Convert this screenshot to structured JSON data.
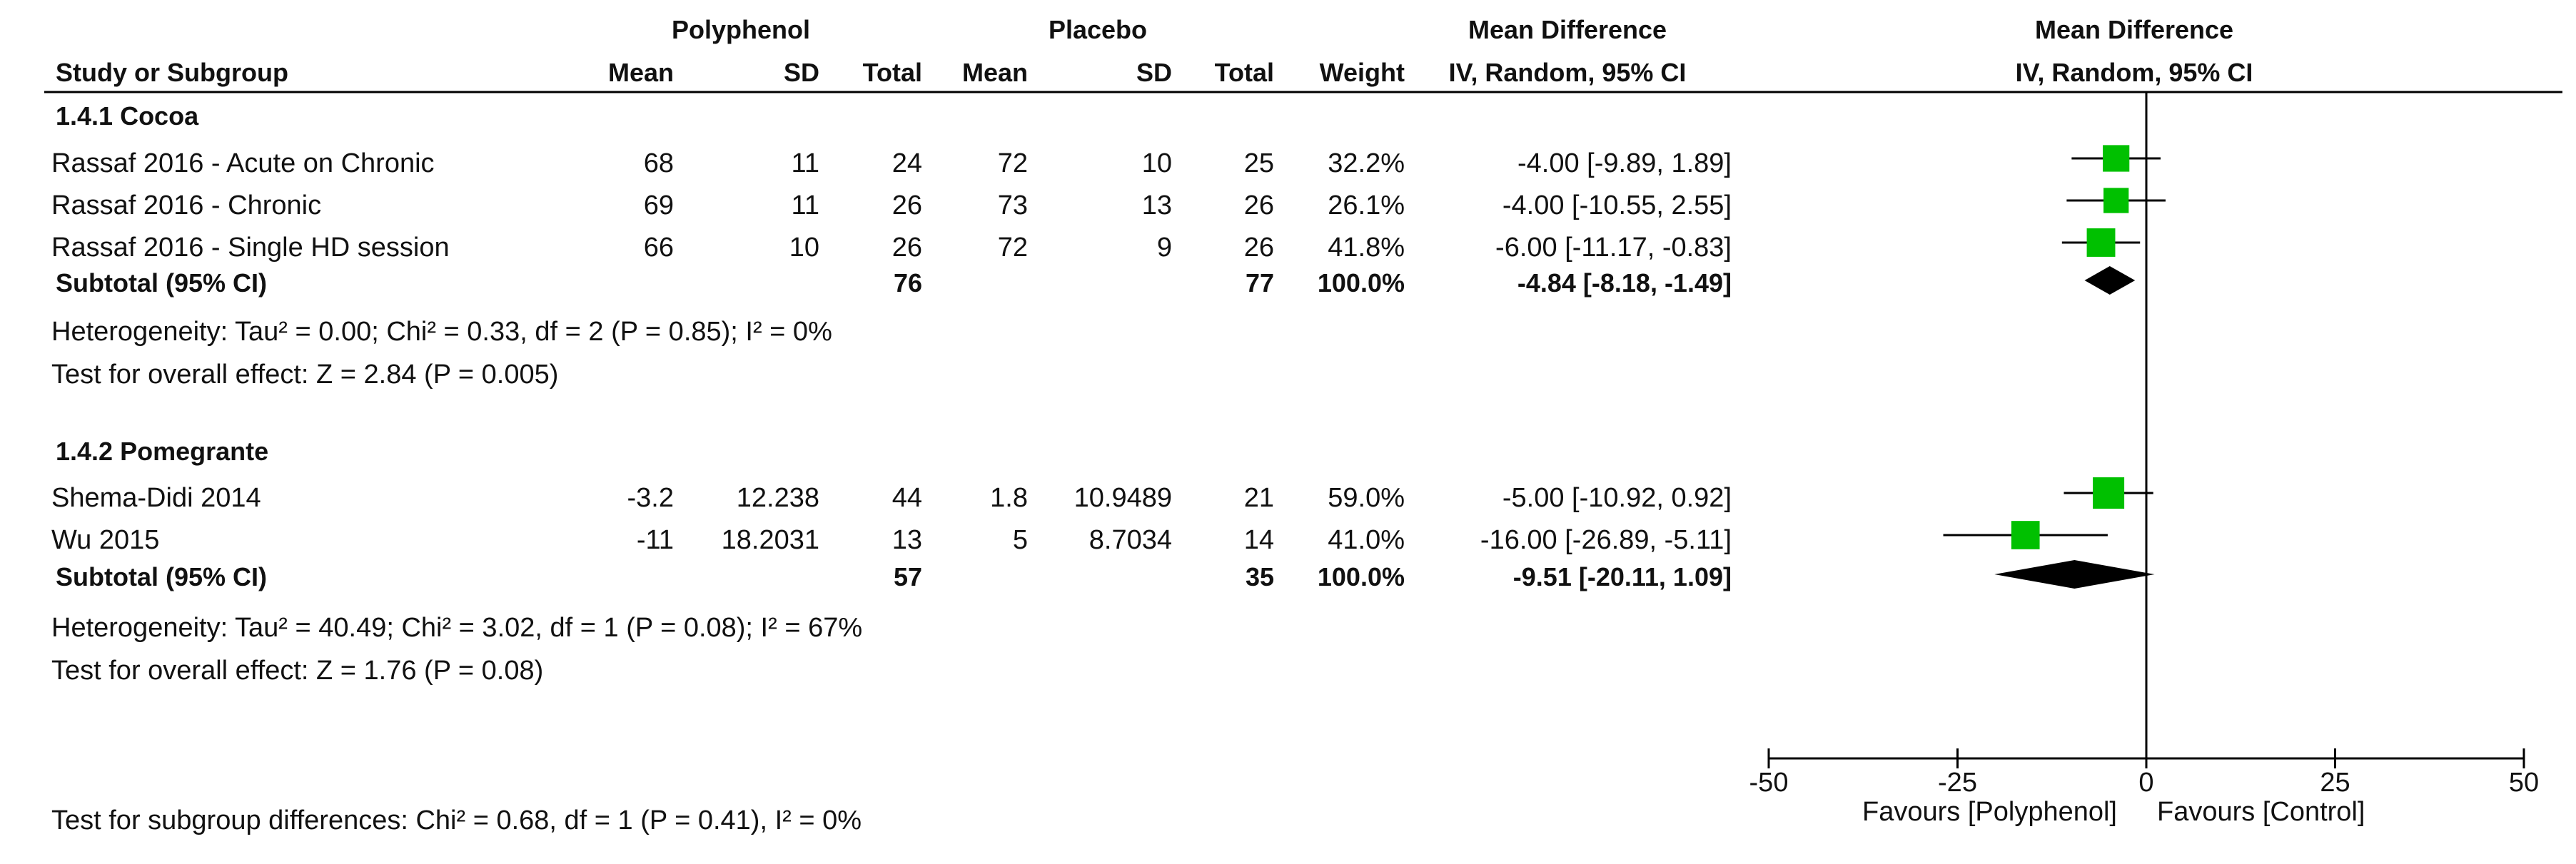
{
  "header": {
    "group1": "Polyphenol",
    "group2": "Placebo",
    "effect_title": "Mean Difference",
    "effect_method": "IV, Random, 95% CI",
    "plot_title": "Mean Difference",
    "plot_method": "IV, Random, 95% CI",
    "study_col": "Study or Subgroup",
    "mean": "Mean",
    "sd": "SD",
    "total": "Total",
    "weight": "Weight"
  },
  "subgroups": [
    {
      "title": "1.4.1 Cocoa",
      "studies": [
        {
          "name": "Rassaf 2016 - Acute on Chronic",
          "mean1": "68",
          "sd1": "11",
          "total1": "24",
          "mean2": "72",
          "sd2": "10",
          "total2": "25",
          "weight": "32.2%",
          "ci_text": "-4.00 [-9.89, 1.89]"
        },
        {
          "name": "Rassaf 2016 - Chronic",
          "mean1": "69",
          "sd1": "11",
          "total1": "26",
          "mean2": "73",
          "sd2": "13",
          "total2": "26",
          "weight": "26.1%",
          "ci_text": "-4.00 [-10.55, 2.55]"
        },
        {
          "name": "Rassaf 2016 - Single HD session",
          "mean1": "66",
          "sd1": "10",
          "total1": "26",
          "mean2": "72",
          "sd2": "9",
          "total2": "26",
          "weight": "41.8%",
          "ci_text": "-6.00 [-11.17, -0.83]"
        }
      ],
      "subtotal": {
        "label": "Subtotal (95% CI)",
        "total1": "76",
        "total2": "77",
        "weight": "100.0%",
        "ci_text": "-4.84 [-8.18, -1.49]"
      },
      "heterogeneity": "Heterogeneity: Tau² = 0.00; Chi² = 0.33, df = 2 (P = 0.85); I² = 0%",
      "overall": "Test for overall effect: Z = 2.84 (P = 0.005)"
    },
    {
      "title": "1.4.2 Pomegrante",
      "studies": [
        {
          "name": "Shema-Didi 2014",
          "mean1": "-3.2",
          "sd1": "12.238",
          "total1": "44",
          "mean2": "1.8",
          "sd2": "10.9489",
          "total2": "21",
          "weight": "59.0%",
          "ci_text": "-5.00 [-10.92, 0.92]"
        },
        {
          "name": "Wu 2015",
          "mean1": "-11",
          "sd1": "18.2031",
          "total1": "13",
          "mean2": "5",
          "sd2": "8.7034",
          "total2": "14",
          "weight": "41.0%",
          "ci_text": "-16.00 [-26.89, -5.11]"
        }
      ],
      "subtotal": {
        "label": "Subtotal (95% CI)",
        "total1": "57",
        "total2": "35",
        "weight": "100.0%",
        "ci_text": "-9.51 [-20.11, 1.09]"
      },
      "heterogeneity": "Heterogeneity: Tau² = 40.49; Chi² = 3.02, df = 1 (P = 0.08); I² = 67%",
      "overall": "Test for overall effect: Z = 1.76 (P = 0.08)"
    }
  ],
  "footer": {
    "subgroup_test": "Test for subgroup differences: Chi² = 0.68, df = 1 (P = 0.41), I² = 0%",
    "favours_left": "Favours [Polyphenol]",
    "favours_right": "Favours [Control]"
  },
  "colors": {
    "marker": "#00c000",
    "diamond": "#000000",
    "line": "#000000"
  },
  "chart_data": {
    "type": "forest",
    "xlim": [
      -50,
      50
    ],
    "ticks": [
      -50,
      -25,
      0,
      25,
      50
    ],
    "tick_labels": [
      "-50",
      "-25",
      "0",
      "25",
      "50"
    ],
    "studies": [
      {
        "name": "Rassaf 2016 - Acute on Chronic",
        "md": -4.0,
        "lo": -9.89,
        "hi": 1.89,
        "weight": 32.2
      },
      {
        "name": "Rassaf 2016 - Chronic",
        "md": -4.0,
        "lo": -10.55,
        "hi": 2.55,
        "weight": 26.1
      },
      {
        "name": "Rassaf 2016 - Single HD session",
        "md": -6.0,
        "lo": -11.17,
        "hi": -0.83,
        "weight": 41.8
      },
      {
        "name": "Shema-Didi 2014",
        "md": -5.0,
        "lo": -10.92,
        "hi": 0.92,
        "weight": 59.0
      },
      {
        "name": "Wu 2015",
        "md": -16.0,
        "lo": -26.89,
        "hi": -5.11,
        "weight": 41.0
      }
    ],
    "subtotals": [
      {
        "label": "Subtotal (95% CI)",
        "md": -4.84,
        "lo": -8.18,
        "hi": -1.49
      },
      {
        "label": "Subtotal (95% CI)",
        "md": -9.51,
        "lo": -20.11,
        "hi": 1.09
      }
    ]
  }
}
